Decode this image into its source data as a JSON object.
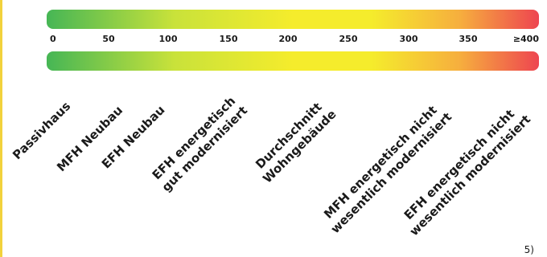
{
  "colors": {
    "green": "#46b655",
    "yellow_green": "#c9e23a",
    "yellow": "#f5ec2c",
    "orange": "#f6ae3e",
    "red": "#ee4550",
    "edge_accent": "#f2d23c"
  },
  "scale": {
    "min": 0,
    "max": 400,
    "ticks": [
      {
        "value": 0,
        "label": "0"
      },
      {
        "value": 50,
        "label": "50"
      },
      {
        "value": 100,
        "label": "100"
      },
      {
        "value": 150,
        "label": "150"
      },
      {
        "value": 200,
        "label": "200"
      },
      {
        "value": 250,
        "label": "250"
      },
      {
        "value": 300,
        "label": "300"
      },
      {
        "value": 350,
        "label": "350"
      },
      {
        "value": 400,
        "label": "≥400"
      }
    ]
  },
  "categories": [
    {
      "line1": "Passivhaus",
      "line2": ""
    },
    {
      "line1": "MFH Neubau",
      "line2": ""
    },
    {
      "line1": "EFH Neubau",
      "line2": ""
    },
    {
      "line1": "EFH energetisch",
      "line2": "gut modernisiert"
    },
    {
      "line1": "Durchschnitt",
      "line2": "Wohngebäude"
    },
    {
      "line1": "MFH energetisch nicht",
      "line2": "wesentlich modernisiert"
    },
    {
      "line1": "EFH energetisch nicht",
      "line2": "wesentlich modernisiert"
    }
  ],
  "footnote": "5)"
}
